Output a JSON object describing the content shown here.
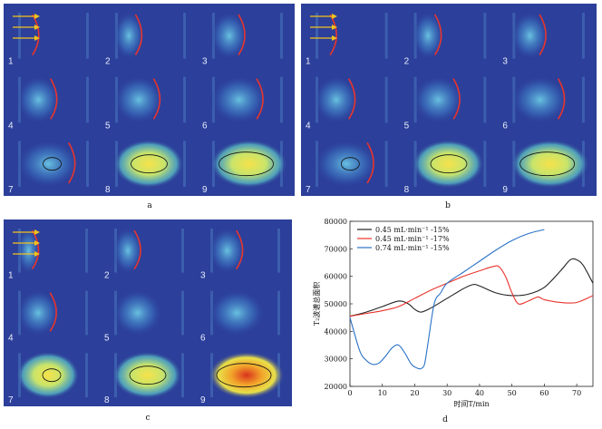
{
  "panels": [
    {
      "id": "a",
      "caption": "a",
      "cells": [
        "1",
        "2",
        "3",
        "4",
        "5",
        "6",
        "7",
        "8",
        "9"
      ]
    },
    {
      "id": "b",
      "caption": "b",
      "cells": [
        "1",
        "2",
        "3",
        "4",
        "5",
        "6",
        "7",
        "8",
        "9"
      ]
    },
    {
      "id": "c",
      "caption": "c",
      "cells": [
        "1",
        "2",
        "3",
        "4",
        "5",
        "6",
        "7",
        "8",
        "9"
      ]
    }
  ],
  "chart_caption": "d",
  "colors": {
    "panel_bg": "#2c3f9a",
    "arrow": "#f2c21b",
    "front_line": "#e8342c",
    "contour": "#111111"
  },
  "chart_data": {
    "type": "line",
    "xlabel": "时间T/min",
    "ylabel": "T₂波谱总面积",
    "xlim": [
      0,
      75
    ],
    "ylim": [
      20000,
      80000
    ],
    "xticks": [
      0,
      10,
      20,
      30,
      40,
      50,
      60,
      70
    ],
    "yticks": [
      20000,
      30000,
      40000,
      50000,
      60000,
      70000,
      80000
    ],
    "xtick_labels": [
      "0",
      "10",
      "20",
      "30",
      "40",
      "50",
      "60",
      "70"
    ],
    "ytick_labels": [
      "20000",
      "30000",
      "40000",
      "50000",
      "60000",
      "70000",
      "80000"
    ],
    "legend_position": "top-left",
    "series": [
      {
        "name": "0.45 mL·min⁻¹ -15%",
        "color": "#222222",
        "x": [
          0,
          5,
          10,
          15,
          18,
          20,
          22,
          25,
          30,
          35,
          38,
          40,
          45,
          50,
          55,
          60,
          65,
          68,
          70,
          72,
          75
        ],
        "y": [
          45500,
          47000,
          49000,
          51000,
          50000,
          48000,
          47000,
          48500,
          52000,
          55500,
          57000,
          56500,
          54000,
          53000,
          53500,
          56000,
          62000,
          66000,
          66000,
          64000,
          57500
        ]
      },
      {
        "name": "0.45 mL·min⁻¹ -17%",
        "color": "#e8342c",
        "x": [
          0,
          5,
          10,
          15,
          20,
          25,
          30,
          35,
          40,
          44,
          46,
          48,
          50,
          52,
          55,
          58,
          60,
          65,
          70,
          75
        ],
        "y": [
          45500,
          46500,
          47500,
          49000,
          52000,
          55000,
          57500,
          60000,
          62000,
          63500,
          63500,
          60000,
          54000,
          50000,
          51000,
          52500,
          51500,
          50500,
          50500,
          53000
        ],
        "_": ""
      },
      {
        "name": "0.74 mL·min⁻¹ -15%",
        "color": "#2a72c6",
        "x": [
          0,
          3,
          5,
          7,
          9,
          11,
          13,
          15,
          17,
          19,
          21,
          22,
          23,
          24,
          26,
          28,
          30,
          35,
          40,
          45,
          50,
          55,
          60
        ],
        "y": [
          45000,
          33000,
          29500,
          28000,
          28500,
          31000,
          34000,
          35000,
          32000,
          28000,
          26500,
          26500,
          28000,
          35000,
          50000,
          54000,
          57500,
          61500,
          65500,
          69500,
          73000,
          75500,
          77000
        ]
      }
    ]
  }
}
